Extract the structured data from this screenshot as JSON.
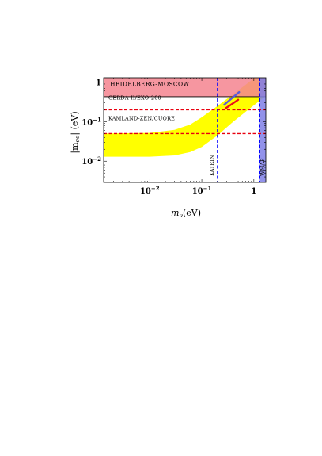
{
  "chart_data": {
    "type": "line",
    "title": "",
    "xlabel_main": "m",
    "xlabel_sub": "ν",
    "xlabel_unit": "(eV)",
    "ylabel_main": "|m",
    "ylabel_sub": "ee",
    "ylabel_unit": "| (eV)",
    "x_scale": "log",
    "y_scale": "log",
    "xlim": [
      0.0013,
      1.7
    ],
    "ylim": [
      0.0029,
      1.3
    ],
    "x_ticks": [
      {
        "value": 0.01,
        "base": "10",
        "exp": "−2"
      },
      {
        "value": 0.1,
        "base": "10",
        "exp": "−1"
      },
      {
        "value": 1,
        "base": "1",
        "exp": ""
      }
    ],
    "y_ticks": [
      {
        "value": 0.01,
        "base": "10",
        "exp": "−2"
      },
      {
        "value": 0.1,
        "base": "10",
        "exp": "−1"
      },
      {
        "value": 1,
        "base": "1",
        "exp": ""
      }
    ],
    "colors": {
      "heidelberg_band": "#f4848f",
      "yellow_band": "#ffff00",
      "wmap_band": "#7f7fe6",
      "limit_line": "#e8000f",
      "katrin_line": "#0000ff",
      "wmap_line": "#0000ff",
      "blue_segment": "#5a5ad8",
      "red_segment": "#e8101a"
    },
    "bands": {
      "heidelberg": {
        "label": "HEIDELBERG-MOSCOW",
        "y_range": [
          0.43,
          1.3
        ]
      },
      "wmap": {
        "label": "WMAP",
        "x_range": [
          1.3,
          1.7
        ]
      }
    },
    "limit_lines": [
      {
        "name": "GERDA-II/EXO-200",
        "y": 0.2
      },
      {
        "name": "KAMLAND-ZEN/CUORE",
        "y": 0.05
      }
    ],
    "vertical_lines": [
      {
        "name": "KATRIN",
        "x": 0.2
      },
      {
        "name": "WMAP",
        "x": 1.3
      }
    ],
    "yellow_region": {
      "x": [
        0.0013,
        0.01,
        0.03,
        0.06,
        0.1,
        0.2,
        0.4,
        0.7,
        1.0,
        1.3,
        1.7
      ],
      "upper": [
        0.05,
        0.052,
        0.062,
        0.085,
        0.13,
        0.25,
        0.5,
        0.87,
        1.25,
        1.6,
        2.1
      ],
      "lower": [
        0.013,
        0.013,
        0.014,
        0.017,
        0.023,
        0.045,
        0.1,
        0.18,
        0.26,
        0.34,
        0.45
      ]
    },
    "series": [
      {
        "x": [
          0.27,
          0.52
        ],
        "y": [
          0.27,
          0.56
        ],
        "color": "#5a5ad8"
      },
      {
        "x": [
          0.29,
          0.5
        ],
        "y": [
          0.22,
          0.36
        ],
        "color": "#e8101a"
      }
    ]
  }
}
